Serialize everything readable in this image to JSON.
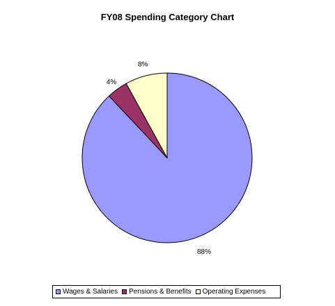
{
  "chart_data": {
    "type": "pie",
    "title": "FY08 Spending Category Chart",
    "slices": [
      {
        "name": "Wages & Salaries",
        "value": 88,
        "label": "88%",
        "color": "#9999ff"
      },
      {
        "name": "Pensions & Benefits",
        "value": 4,
        "label": "4%",
        "color": "#993366"
      },
      {
        "name": "Operating Expenses",
        "value": 8,
        "label": "8%",
        "color": "#ffffcc"
      }
    ],
    "legend_position": "bottom"
  }
}
